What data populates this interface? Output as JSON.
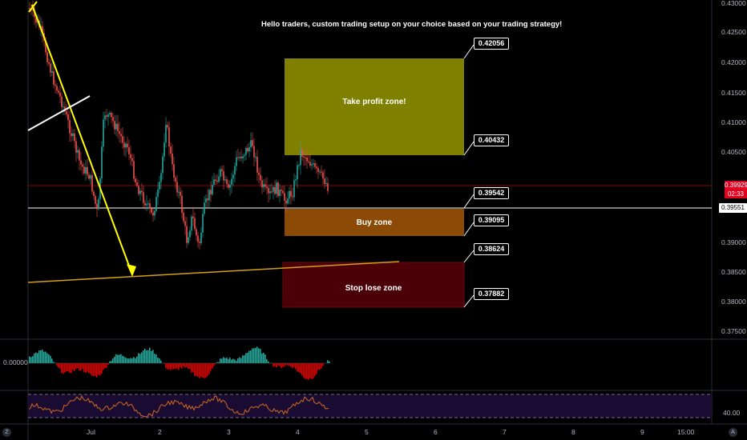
{
  "headline": "Hello traders,  custom trading setup on your choice based on your trading strategy!",
  "zones": {
    "take_profit": {
      "label": "Take profit zone!",
      "color": "#808000"
    },
    "buy": {
      "label": "Buy zone",
      "color": "#8b4a05"
    },
    "stop_loss": {
      "label": "Stop lose zone",
      "color": "#4a0006"
    }
  },
  "level_callouts": [
    "0.42056",
    "0.40432",
    "0.39542",
    "0.39095",
    "0.38624",
    "0.37882"
  ],
  "price_axis": {
    "ticks": [
      "0.43000",
      "0.42500",
      "0.42000",
      "0.41500",
      "0.41000",
      "0.40500",
      "0.39000",
      "0.38500",
      "0.38000",
      "0.37500"
    ],
    "last_price": "0.39929",
    "countdown": "02:33",
    "marker_price": "0.39551",
    "last_price_color": "#e0001f"
  },
  "indicator1": {
    "axis_label": "0.00000"
  },
  "indicator2": {
    "axis_label": "40.00",
    "band_color": "#1a0b33",
    "line_color": "#d2691e"
  },
  "time_axis": {
    "ticks": [
      "Jul",
      "2",
      "3",
      "4",
      "5",
      "6",
      "7",
      "8",
      "9",
      "15:00"
    ]
  },
  "corner_icons": {
    "left": "Z",
    "right": "A"
  },
  "colors": {
    "up": "#26a69a",
    "down": "#ef5350",
    "annotation": "#ffff00",
    "trend_line": "#d4a017"
  }
}
